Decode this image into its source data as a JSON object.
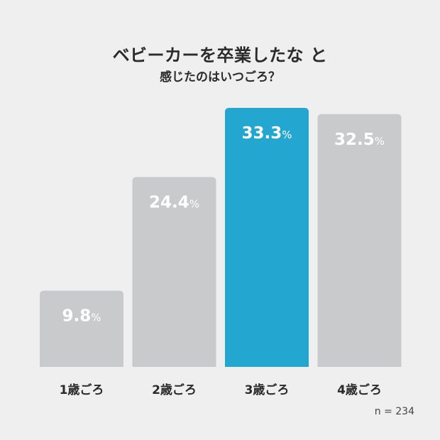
{
  "title": {
    "line1": "ベビーカーを卒業したな と",
    "line2": "感じたのはいつごろ？"
  },
  "chart_data": {
    "type": "bar",
    "categories": [
      "1歳ごろ",
      "2歳ごろ",
      "3歳ごろ",
      "4歳ごろ"
    ],
    "values": [
      9.8,
      24.4,
      33.3,
      32.5
    ],
    "value_labels": [
      "9.8",
      "24.4",
      "33.3",
      "32.5"
    ],
    "unit": "%",
    "highlight_index": 2,
    "colors": {
      "default": "#c8cacb",
      "highlight": "#23a7d0",
      "value_text": "#ffffff",
      "category_text": "#2b2b2b"
    },
    "ylim": [
      0,
      33.3
    ],
    "grid": false
  },
  "note": "n = 234"
}
